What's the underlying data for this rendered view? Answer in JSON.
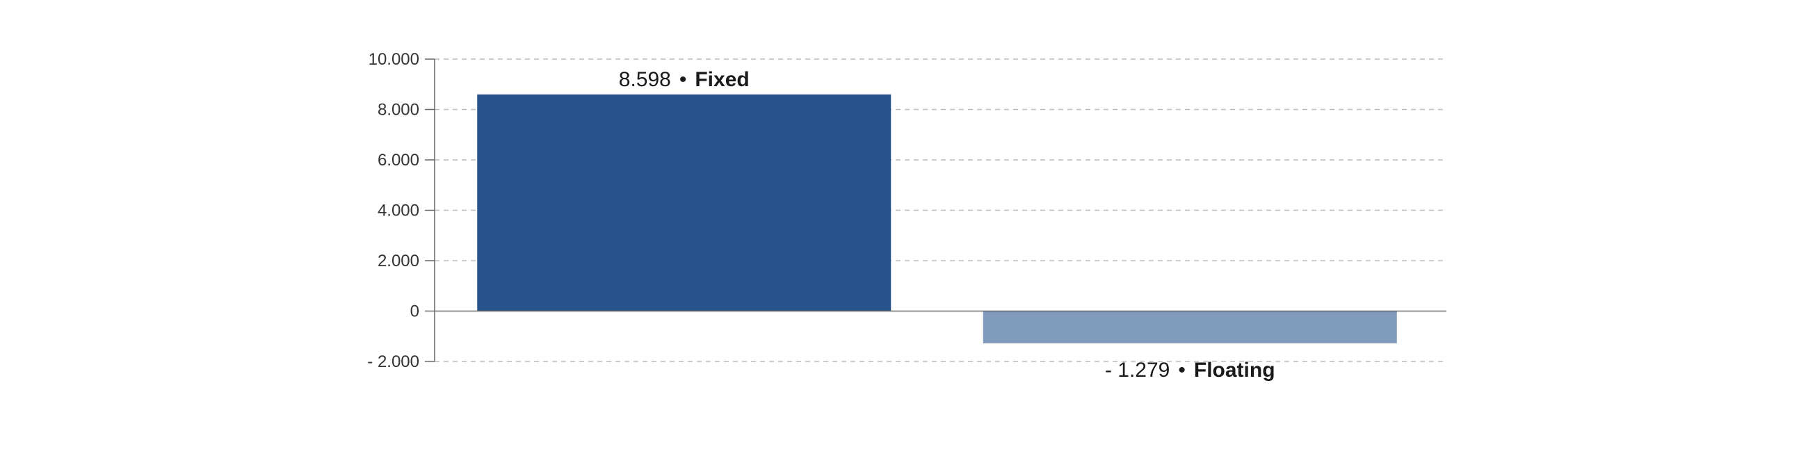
{
  "chart_data": {
    "type": "bar",
    "categories": [
      "Fixed",
      "Floating"
    ],
    "values": [
      8598,
      -1279
    ],
    "value_labels": [
      "8.598",
      "- 1.279"
    ],
    "separator": "•",
    "ylim": [
      -2000,
      10000
    ],
    "yticks": [
      10000,
      8000,
      6000,
      4000,
      2000,
      0,
      -2000
    ],
    "ytick_labels": [
      "10.000",
      "8.000",
      "6.000",
      "4.000",
      "2.000",
      "0",
      "- 2.000"
    ],
    "grid": true,
    "colors": [
      "#27528a",
      "#7f9aba"
    ],
    "grid_color": "#bbbbbb",
    "axis_color": "#666666"
  }
}
